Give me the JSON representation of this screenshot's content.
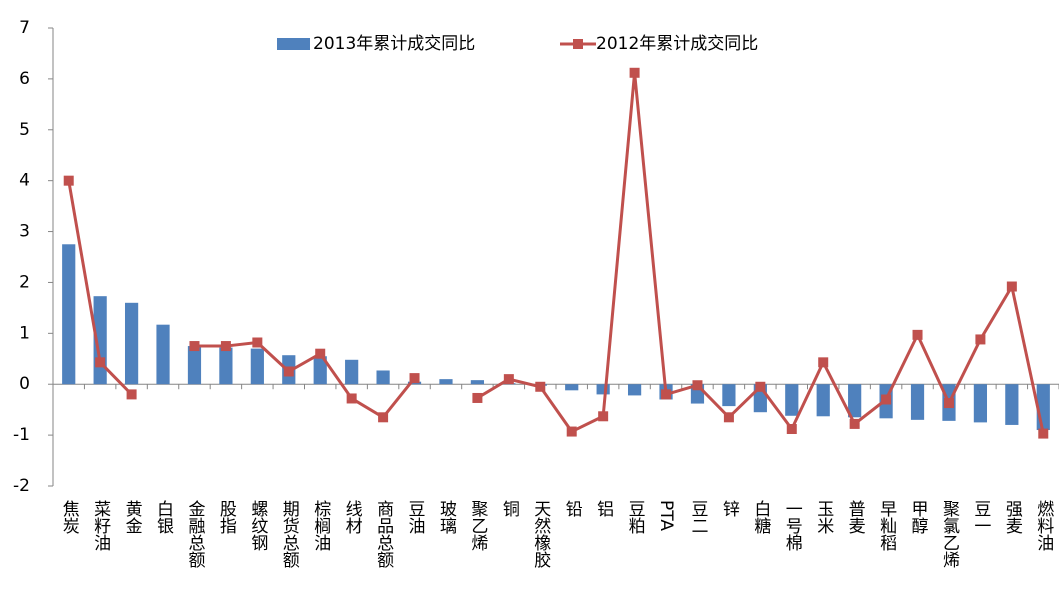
{
  "chart_data": {
    "type": "bar-line",
    "categories": [
      "焦炭",
      "菜籽油",
      "黄金",
      "白银",
      "金融总额",
      "股指",
      "螺纹钢",
      "期货总额",
      "棕榈油",
      "线材",
      "商品总额",
      "豆油",
      "玻璃",
      "聚乙烯",
      "铜",
      "天然橡胶",
      "铅",
      "铝",
      "豆粕",
      "PTA",
      "豆二",
      "锌",
      "白糖",
      "一号棉",
      "玉米",
      "普麦",
      "早籼稻",
      "甲醇",
      "聚氯乙烯",
      "豆一",
      "强麦",
      "燃料油"
    ],
    "series": [
      {
        "name": "2013年累计成交同比",
        "type": "bar",
        "color": "#4f81bd",
        "values": [
          2.75,
          1.73,
          1.6,
          1.17,
          0.75,
          0.72,
          0.7,
          0.57,
          0.55,
          0.48,
          0.27,
          0.05,
          0.1,
          0.08,
          0.02,
          -0.03,
          -0.12,
          -0.2,
          -0.22,
          -0.3,
          -0.38,
          -0.43,
          -0.55,
          -0.62,
          -0.63,
          -0.65,
          -0.67,
          -0.7,
          -0.72,
          -0.75,
          -0.8,
          -0.9
        ]
      },
      {
        "name": "2012年累计成交同比",
        "type": "line",
        "color": "#c0504d",
        "values": [
          4.0,
          0.43,
          -0.2,
          null,
          0.75,
          0.75,
          0.82,
          0.25,
          0.6,
          -0.28,
          -0.65,
          0.12,
          null,
          -0.27,
          0.1,
          -0.05,
          -0.93,
          -0.63,
          6.12,
          -0.2,
          -0.02,
          -0.65,
          -0.05,
          -0.88,
          0.43,
          -0.78,
          -0.3,
          0.97,
          -0.37,
          0.88,
          1.92,
          -0.97
        ]
      }
    ],
    "ylim": [
      -2,
      7
    ],
    "yticks": [
      -2,
      -1,
      0,
      1,
      2,
      3,
      4,
      5,
      6,
      7
    ],
    "legend": "top"
  }
}
